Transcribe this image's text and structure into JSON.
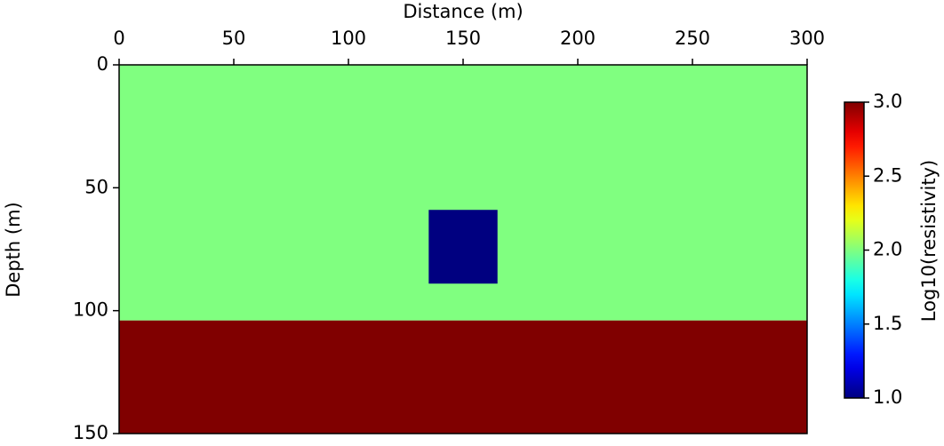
{
  "chart_data": {
    "type": "heatmap",
    "x_label": "Distance (m)",
    "y_label": "Depth (m)",
    "xlim": [
      0,
      300
    ],
    "xticks": [
      0,
      50,
      100,
      150,
      200,
      250,
      300
    ],
    "ylim": [
      0,
      150
    ],
    "yticks": [
      0,
      50,
      100,
      150
    ],
    "y_inverted": true,
    "x_axis_position": "top",
    "colormap": "jet",
    "regions": [
      {
        "x": [
          0,
          300
        ],
        "y": [
          0,
          104
        ],
        "value": 2.0
      },
      {
        "x": [
          0,
          300
        ],
        "y": [
          104,
          150
        ],
        "value": 3.0
      },
      {
        "x": [
          135,
          165
        ],
        "y": [
          59,
          89
        ],
        "value": 1.0
      }
    ],
    "colorbar": {
      "label": "Log10(resistivity)",
      "lim": [
        1,
        3
      ],
      "ticks": [
        {
          "value": 1,
          "label": "1.0"
        },
        {
          "value": 1.5,
          "label": "1.5"
        },
        {
          "value": 2,
          "label": "2.0"
        },
        {
          "value": 2.5,
          "label": "2.5"
        },
        {
          "value": 3,
          "label": "3.0"
        }
      ]
    }
  }
}
